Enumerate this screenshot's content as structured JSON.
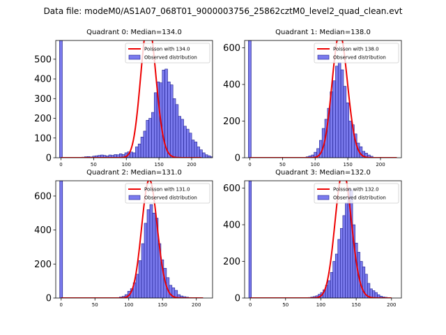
{
  "figure": {
    "title": "Data file: modeM0/AS1A07_068T01_9000003756_25862cztM0_level2_quad_clean.evt"
  },
  "colors": {
    "bar_fill": "#7b7bee",
    "bar_edge": "#1a1a8c",
    "line": "#ee0000"
  },
  "chart_data": [
    {
      "type": "bar+line",
      "title": "Quadrant 0: Median=134.0",
      "median": 134.0,
      "xlim": [
        -8,
        232
      ],
      "ylim": [
        0,
        595
      ],
      "xticks": [
        0,
        50,
        100,
        150,
        200
      ],
      "yticks": [
        0,
        100,
        200,
        300,
        400,
        500
      ],
      "bin_width": 4.1,
      "zero_bin": {
        "x": 0,
        "count": 595
      },
      "bins_start": 32,
      "counts": [
        3,
        5,
        6,
        4,
        8,
        10,
        12,
        14,
        12,
        9,
        14,
        12,
        16,
        15,
        20,
        16,
        25,
        30,
        29,
        25,
        55,
        70,
        105,
        135,
        190,
        200,
        230,
        330,
        385,
        380,
        445,
        450,
        385,
        370,
        300,
        270,
        210,
        195,
        160,
        145,
        125,
        90,
        80,
        55,
        40,
        25,
        15,
        10,
        5,
        3
      ],
      "series": [
        {
          "name": "Poisson with 134.0",
          "type": "line"
        },
        {
          "name": "Observed distribution",
          "type": "bar"
        }
      ],
      "poisson_scale": 20000,
      "line_range": [
        0,
        215
      ]
    },
    {
      "type": "bar+line",
      "title": "Quadrant 1: Median=138.0",
      "median": 138.0,
      "xlim": [
        -8,
        232
      ],
      "ylim": [
        0,
        640
      ],
      "xticks": [
        0,
        50,
        100,
        150,
        200
      ],
      "yticks": [
        0,
        200,
        400,
        600
      ],
      "bin_width": 4.1,
      "zero_bin": {
        "x": 0,
        "count": 640
      },
      "bins_start": 86,
      "counts": [
        5,
        10,
        15,
        30,
        50,
        95,
        160,
        210,
        270,
        360,
        420,
        500,
        520,
        480,
        390,
        300,
        200,
        180,
        130,
        80,
        60,
        35,
        25,
        15,
        8
      ],
      "series": [
        {
          "name": "Poisson with 138.0",
          "type": "line"
        },
        {
          "name": "Observed distribution",
          "type": "bar"
        }
      ],
      "poisson_scale": 20000,
      "line_range": [
        0,
        225
      ]
    },
    {
      "type": "bar+line",
      "title": "Quadrant 2: Median=131.0",
      "median": 131.0,
      "xlim": [
        -8,
        224
      ],
      "ylim": [
        0,
        690
      ],
      "xticks": [
        0,
        50,
        100,
        150,
        200
      ],
      "yticks": [
        0,
        200,
        400,
        600
      ],
      "bin_width": 4.1,
      "zero_bin": {
        "x": 0,
        "count": 690
      },
      "bins_start": 82,
      "counts": [
        3,
        6,
        10,
        20,
        40,
        55,
        90,
        140,
        220,
        320,
        440,
        520,
        550,
        500,
        470,
        320,
        225,
        175,
        120,
        75,
        60,
        45,
        20,
        12,
        8,
        5,
        3
      ],
      "series": [
        {
          "name": "Poisson with 131.0",
          "type": "line"
        },
        {
          "name": "Observed distribution",
          "type": "bar"
        }
      ],
      "poisson_scale": 20000,
      "line_range": [
        0,
        210
      ]
    },
    {
      "type": "bar+line",
      "title": "Quadrant 3: Median=132.0",
      "median": 132.0,
      "xlim": [
        -8,
        214
      ],
      "ylim": [
        0,
        640
      ],
      "xticks": [
        0,
        50,
        100,
        150,
        200
      ],
      "yticks": [
        0,
        200,
        400,
        600
      ],
      "bin_width": 3.5,
      "zero_bin": {
        "x": 0,
        "count": 640
      },
      "bins_start": 82,
      "counts": [
        3,
        5,
        8,
        12,
        20,
        30,
        45,
        70,
        95,
        140,
        200,
        240,
        320,
        380,
        450,
        520,
        600,
        590,
        400,
        300,
        250,
        200,
        170,
        130,
        80,
        50,
        40,
        30,
        18,
        10,
        6,
        4,
        2
      ],
      "series": [
        {
          "name": "Poisson with 132.0",
          "type": "line"
        },
        {
          "name": "Observed distribution",
          "type": "bar"
        }
      ],
      "poisson_scale": 20000,
      "line_range": [
        0,
        200
      ]
    }
  ]
}
